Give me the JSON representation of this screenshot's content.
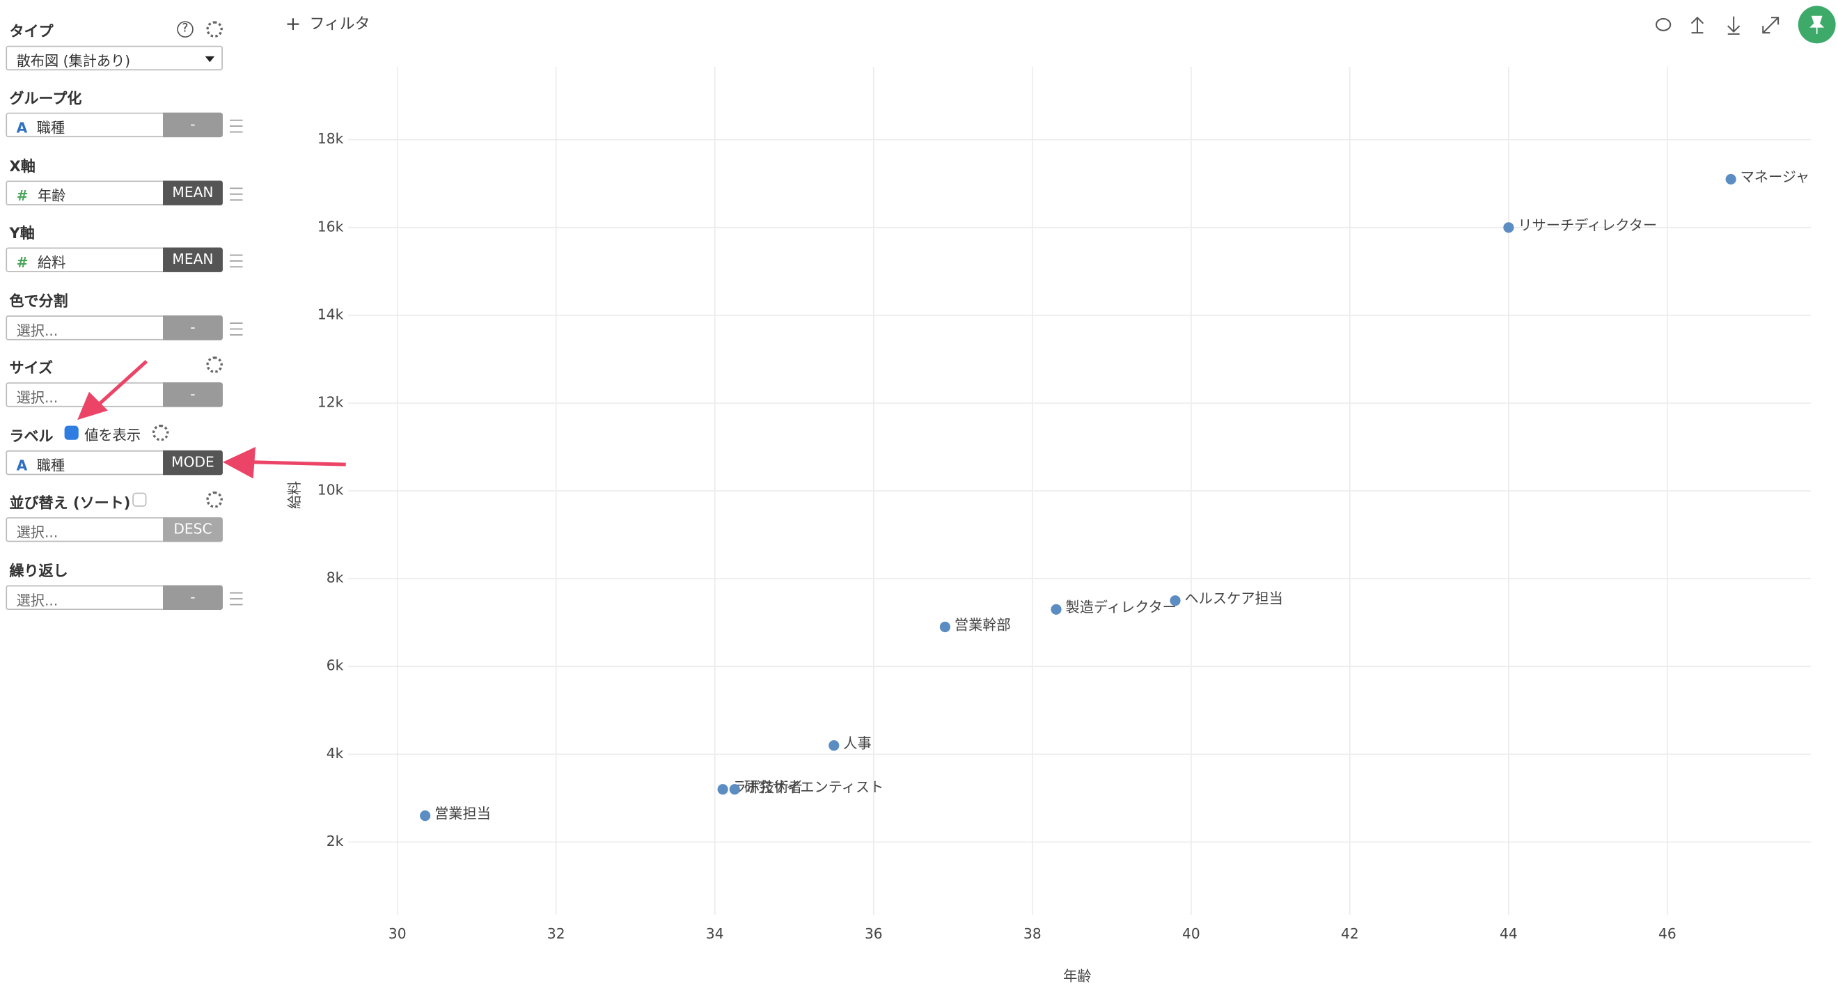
{
  "toolbar": {
    "plus": "+",
    "filter": "フィルタ"
  },
  "sidebar": {
    "type_label": "タイプ",
    "type_value": "散布図 (集計あり)",
    "sections": [
      {
        "label": "グループ化",
        "icon": "A",
        "field": "職種",
        "agg": "-"
      },
      {
        "label": "X軸",
        "icon": "#",
        "field": "年齢",
        "agg": "MEAN"
      },
      {
        "label": "Y軸",
        "icon": "#",
        "field": "給料",
        "agg": "MEAN"
      },
      {
        "label": "色で分割",
        "field": "選択...",
        "agg": "-"
      },
      {
        "label": "サイズ",
        "field": "選択...",
        "agg": "-"
      },
      {
        "label": "ラベル",
        "checkbox_label": "値を表示",
        "icon": "A",
        "field": "職種",
        "agg": "MODE"
      },
      {
        "label": "並び替え (ソート)",
        "field": "選択...",
        "agg": "DESC"
      },
      {
        "label": "繰り返し",
        "field": "選択...",
        "agg": "-"
      }
    ]
  },
  "chart_data": {
    "type": "scatter",
    "x_label": "年齢",
    "y_label": "給料",
    "color": "#5b8cc2",
    "grid": true,
    "labels": [
      "営業担当",
      "ラボ技術者",
      "研究サイエンティスト",
      "人事",
      "営業幹部",
      "製造ディレクター",
      "ヘルスケア担当",
      "リサーチディレクター",
      "マネージャ"
    ],
    "x": [
      30.35,
      34.1,
      34.25,
      35.5,
      36.9,
      38.3,
      39.8,
      44.0,
      46.8
    ],
    "values": [
      2600,
      3200,
      3200,
      4200,
      6900,
      7300,
      7500,
      16000,
      17100
    ],
    "xlim": [
      29.38,
      47.81
    ],
    "ylim": [
      340,
      19660
    ],
    "xticks": [
      30,
      32,
      34,
      36,
      38,
      40,
      42,
      44,
      46
    ],
    "yticks": [
      {
        "value": 2000,
        "label": "2k"
      },
      {
        "value": 4000,
        "label": "4k"
      },
      {
        "value": 6000,
        "label": "6k"
      },
      {
        "value": 8000,
        "label": "8k"
      },
      {
        "value": 10000,
        "label": "10k"
      },
      {
        "value": 12000,
        "label": "12k"
      },
      {
        "value": 14000,
        "label": "14k"
      },
      {
        "value": 16000,
        "label": "16k"
      },
      {
        "value": 18000,
        "label": "18k"
      }
    ]
  }
}
